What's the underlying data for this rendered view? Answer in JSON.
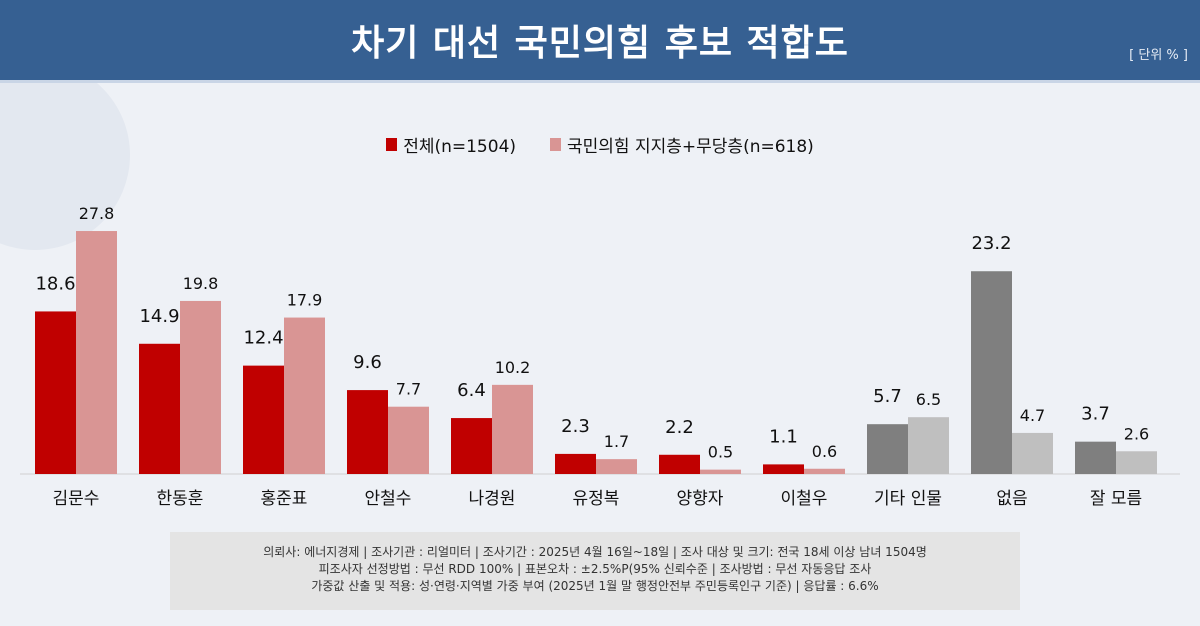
{
  "header": {
    "title": "차기 대선 국민의힘 후보 적합도",
    "unit": "[ 단위 % ]"
  },
  "chart_data": {
    "type": "bar",
    "title": "차기 대선 국민의힘 후보 적합도",
    "ylabel": "%",
    "categories": [
      "김문수",
      "한동훈",
      "홍준표",
      "안철수",
      "나경원",
      "유정복",
      "양향자",
      "이철우",
      "기타 인물",
      "없음",
      "잘 모름"
    ],
    "series": [
      {
        "name": "전체(n=1504)",
        "values": [
          18.6,
          14.9,
          12.4,
          9.6,
          6.4,
          2.3,
          2.2,
          1.1,
          5.7,
          23.2,
          3.7
        ],
        "color": "#c00000",
        "alt_color": "#7f7f7f"
      },
      {
        "name": "국민의힘 지지층+무당층(n=618)",
        "values": [
          27.8,
          19.8,
          17.9,
          7.7,
          10.2,
          1.7,
          0.5,
          0.6,
          6.5,
          4.7,
          2.6
        ],
        "color": "#d99594",
        "alt_color": "#bfbfbf"
      }
    ],
    "gray_categories": [
      "기타 인물",
      "없음",
      "잘 모름"
    ],
    "ylim": [
      0,
      30
    ],
    "grid": false,
    "legend_position": "top-center"
  },
  "footer": {
    "lines": [
      "의뢰사: 에너지경제 | 조사기관 : 리얼미터  |  조사기간 : 2025년 4월 16일~18일 | 조사 대상 및 크기: 전국 18세 이상 남녀 1504명",
      "피조사자 선정방법 : 무선 RDD 100% | 표본오차 : ±2.5%P(95% 신뢰수준 | 조사방법 : 무선 자동응답 조사",
      "가중값 산출 및 적용: 성·연령·지역별 가중 부여 (2025년 1월 말 행정안전부 주민등록인구 기준) | 응답률 : 6.6%"
    ]
  }
}
